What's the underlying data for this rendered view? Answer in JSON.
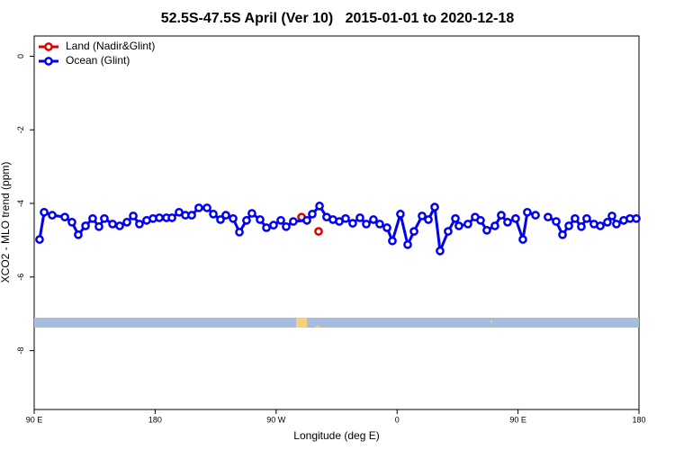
{
  "chart_data": {
    "type": "line",
    "title": "52.5S-47.5S April (Ver 10)   2015-01-01 to 2020-12-18",
    "x_label": "Longitude (deg E)",
    "y_label": "XCO2 - MLO trend (ppm)",
    "xlim": [
      90,
      540
    ],
    "xticks": [
      {
        "value": 90,
        "label": "90 E"
      },
      180,
      {
        "value": 270,
        "label": "90 W"
      },
      {
        "value": 360,
        "label": "0"
      },
      {
        "value": 450,
        "label": "90 E"
      },
      {
        "value": 540,
        "label": "180"
      }
    ],
    "ylim": [
      -9.6,
      0.55
    ],
    "yticks": [
      0,
      -2,
      -4,
      -6,
      -8
    ],
    "legend": "top-left",
    "series": [
      {
        "name": "Land (Nadir&Glint)",
        "color": "#e00000",
        "x": [
          288.9,
          301.6
        ],
        "values": [
          -4.37,
          -4.76
        ]
      },
      {
        "name": "Ocean (Glint)",
        "color": "#0000ee",
        "x": [
          94.0,
          97.4,
          103.4,
          112.8,
          118.1,
          122.8,
          128.2,
          133.5,
          138.2,
          142.2,
          148.3,
          153.6,
          159.0,
          163.7,
          168.3,
          173.7,
          178.4,
          183.1,
          188.4,
          192.5,
          197.8,
          202.5,
          207.2,
          212.5,
          218.6,
          223.3,
          228.6,
          232.6,
          238.0,
          242.7,
          248.0,
          252.0,
          258.1,
          262.8,
          268.1,
          273.5,
          277.5,
          282.8,
          292.9,
          296.9,
          302.3,
          307.6,
          312.3,
          317.0,
          321.7,
          327.0,
          332.4,
          337.1,
          342.4,
          347.1,
          352.5,
          356.5,
          362.5,
          367.9,
          372.6,
          378.6,
          383.3,
          388.0,
          392.0,
          398.0,
          403.4,
          406.0,
          412.7,
          418.1,
          422.1,
          426.8,
          432.8,
          437.5,
          442.2,
          448.2,
          453.6,
          456.9,
          463.0,
          468.0,
          472.3,
          478.4,
          483.1,
          487.8,
          492.4,
          497.1,
          501.1,
          506.5,
          511.2,
          516.5,
          519.9,
          523.2,
          528.6,
          533.3,
          538.0
        ],
        "values": [
          -4.98,
          -4.24,
          -4.32,
          -4.37,
          -4.51,
          -4.85,
          -4.61,
          -4.41,
          -4.63,
          -4.41,
          -4.56,
          -4.61,
          -4.51,
          -4.34,
          -4.56,
          -4.46,
          -4.41,
          -4.39,
          -4.39,
          -4.39,
          -4.24,
          -4.32,
          -4.32,
          -4.12,
          -4.12,
          -4.29,
          -4.44,
          -4.32,
          -4.41,
          -4.78,
          -4.46,
          -4.27,
          -4.44,
          -4.66,
          -4.59,
          -4.46,
          -4.63,
          -4.49,
          -4.46,
          -4.29,
          -4.07,
          -4.37,
          -4.44,
          -4.49,
          -4.41,
          -4.54,
          -4.39,
          -4.56,
          -4.44,
          -4.56,
          -4.66,
          -5.02,
          -4.29,
          -5.12,
          -4.76,
          -4.34,
          -4.44,
          -4.1,
          -5.29,
          -4.76,
          -4.41,
          -4.61,
          -4.56,
          -4.37,
          -4.46,
          -4.73,
          -4.61,
          -4.32,
          -4.51,
          -4.41,
          -4.98,
          -4.24,
          -4.32,
          null,
          -4.37,
          -4.49,
          -4.85,
          -4.61,
          -4.41,
          -4.63,
          -4.41,
          -4.56,
          -4.61,
          -4.51,
          -4.34,
          -4.56,
          -4.46,
          -4.41,
          -4.41
        ]
      }
    ]
  }
}
